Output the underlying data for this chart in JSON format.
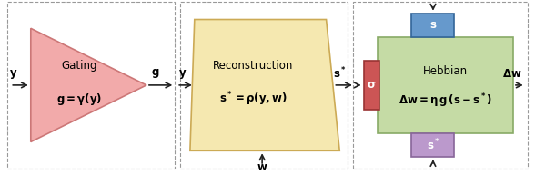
{
  "bg_color": "#ffffff",
  "dashed_border_color": "#999999",
  "panel1": {
    "triangle_color": "#f2aaaa",
    "triangle_edge": "#cc7777",
    "label_top": "Gating",
    "label_bot": "g = \\gamma(y)",
    "input_label": "y",
    "output_label": "g"
  },
  "panel2": {
    "trapezoid_color": "#f5e8b0",
    "trapezoid_edge": "#ccaa55",
    "label_top": "Reconstruction",
    "label_bot": "s* = \\rho(y, w)",
    "input_label": "y",
    "output_label": "s*",
    "bottom_label": "w"
  },
  "panel3": {
    "main_box_color": "#c5dba5",
    "main_box_edge": "#88aa66",
    "top_box_color": "#6699cc",
    "top_box_edge": "#336699",
    "bot_box_color": "#bb99cc",
    "bot_box_edge": "#886699",
    "left_box_color": "#cc5555",
    "left_box_edge": "#993333",
    "label_top": "Hebbian",
    "label_bot": "\\Delta w = \\eta g (s - s*)",
    "top_box_label": "s",
    "bot_box_label": "s*",
    "left_box_label": "\\sigma",
    "output_label": "\\Delta w"
  },
  "arrow_color": "#222222",
  "text_color": "#000000",
  "font_size": 8.5
}
